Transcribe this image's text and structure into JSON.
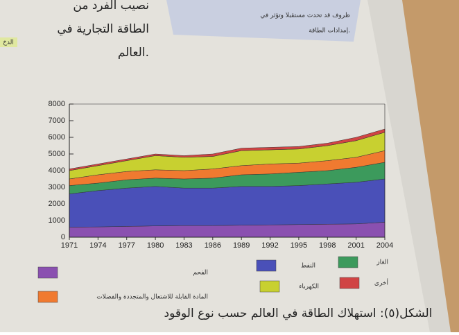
{
  "page_text": {
    "right_column": [
      "نصيب الفرد من",
      "الطاقة التجارية في",
      "العالم."
    ],
    "box_text": [
      "ظروف قد تحدث مستقبلا وتؤثر في",
      "إمدادات الطاقة."
    ],
    "side_tag": "الدخ"
  },
  "chart_data": {
    "type": "stacked_area",
    "caption": "الشكل(٥): استهلاك الطاقة في العالم حسب نوع الوقود",
    "x": [
      1971,
      1974,
      1977,
      1980,
      1983,
      1986,
      1989,
      1992,
      1995,
      1998,
      2001,
      2004
    ],
    "xlim": [
      1971,
      2004
    ],
    "xticks": [
      1971,
      1974,
      1977,
      1980,
      1983,
      1986,
      1989,
      1992,
      1995,
      1998,
      2001,
      2004
    ],
    "ylim": [
      0,
      8000
    ],
    "yticks": [
      0,
      1000,
      2000,
      3000,
      4000,
      5000,
      6000,
      7000,
      8000
    ],
    "series": [
      {
        "name": "الفحم",
        "color": "#8a50b0",
        "values": [
          600,
          620,
          650,
          680,
          700,
          700,
          720,
          740,
          760,
          780,
          800,
          900
        ]
      },
      {
        "name": "النفط",
        "color": "#4a50b8",
        "values": [
          2000,
          2180,
          2300,
          2370,
          2250,
          2250,
          2330,
          2310,
          2340,
          2420,
          2500,
          2600
        ]
      },
      {
        "name": "الغاز",
        "color": "#3c9a5c",
        "values": [
          500,
          450,
          500,
          500,
          550,
          600,
          700,
          750,
          800,
          800,
          900,
          1000
        ]
      },
      {
        "name": "المادة القابلة للاشتعال والمتجددة والفضلات",
        "color": "#f07a30",
        "values": [
          400,
          500,
          500,
          500,
          500,
          550,
          550,
          600,
          550,
          600,
          600,
          700
        ]
      },
      {
        "name": "الكهرباء",
        "color": "#c8d030",
        "values": [
          500,
          550,
          650,
          850,
          800,
          750,
          900,
          850,
          850,
          900,
          1000,
          1100
        ]
      },
      {
        "name": "أخرى",
        "color": "#d04444",
        "values": [
          100,
          100,
          100,
          100,
          100,
          150,
          150,
          150,
          150,
          150,
          200,
          200
        ]
      }
    ]
  }
}
